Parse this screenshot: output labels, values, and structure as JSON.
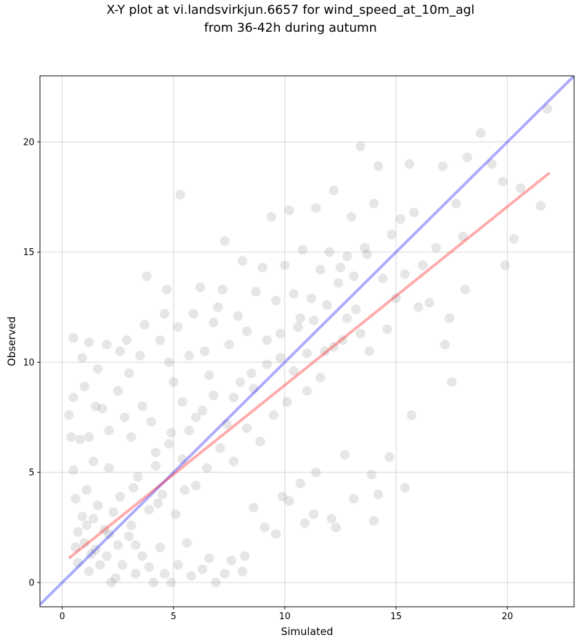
{
  "chart_data": {
    "type": "scatter",
    "title_line1": "X-Y plot at vi.landsvirkjun.6657 for wind_speed_at_10m_agl",
    "title_line2": "from 36-42h during autumn",
    "xlabel": "Simulated",
    "ylabel": "Observed",
    "xlim": [
      -1.0,
      23.0
    ],
    "ylim": [
      -1.1,
      23.0
    ],
    "xticks": [
      0,
      5,
      10,
      15,
      20
    ],
    "yticks": [
      0,
      5,
      10,
      15,
      20
    ],
    "grid": true,
    "point_color": "#808080",
    "series": [
      {
        "values": [
          [
            0.3,
            7.6
          ],
          [
            0.4,
            6.6
          ],
          [
            0.5,
            11.1
          ],
          [
            0.5,
            8.4
          ],
          [
            0.5,
            5.1
          ],
          [
            0.6,
            3.8
          ],
          [
            0.7,
            2.3
          ],
          [
            0.8,
            6.5
          ],
          [
            0.9,
            10.2
          ],
          [
            1.0,
            8.9
          ],
          [
            1.2,
            10.9
          ],
          [
            1.2,
            6.6
          ],
          [
            1.1,
            4.2
          ],
          [
            1.3,
            1.3
          ],
          [
            1.4,
            5.5
          ],
          [
            1.5,
            8.0
          ],
          [
            1.6,
            9.7
          ],
          [
            1.8,
            7.9
          ],
          [
            2.0,
            10.8
          ],
          [
            2.1,
            6.9
          ],
          [
            2.1,
            5.2
          ],
          [
            2.3,
            3.2
          ],
          [
            2.4,
            0.2
          ],
          [
            2.5,
            8.7
          ],
          [
            2.6,
            10.5
          ],
          [
            2.8,
            7.5
          ],
          [
            2.9,
            11.0
          ],
          [
            3.0,
            9.5
          ],
          [
            3.1,
            6.6
          ],
          [
            3.2,
            4.3
          ],
          [
            3.3,
            1.7
          ],
          [
            3.5,
            10.3
          ],
          [
            3.6,
            8.0
          ],
          [
            3.7,
            11.7
          ],
          [
            3.8,
            13.9
          ],
          [
            4.0,
            7.3
          ],
          [
            4.2,
            5.3
          ],
          [
            4.3,
            3.6
          ],
          [
            4.4,
            11.0
          ],
          [
            4.6,
            12.2
          ],
          [
            4.7,
            13.3
          ],
          [
            4.8,
            10.0
          ],
          [
            4.9,
            6.8
          ],
          [
            5.0,
            9.1
          ],
          [
            5.2,
            11.6
          ],
          [
            5.3,
            17.6
          ],
          [
            5.4,
            8.2
          ],
          [
            5.5,
            4.2
          ],
          [
            5.7,
            10.3
          ],
          [
            5.9,
            12.2
          ],
          [
            6.0,
            7.5
          ],
          [
            6.2,
            13.4
          ],
          [
            6.4,
            10.5
          ],
          [
            6.6,
            9.4
          ],
          [
            6.8,
            11.8
          ],
          [
            7.0,
            12.5
          ],
          [
            7.2,
            13.3
          ],
          [
            7.3,
            15.5
          ],
          [
            7.5,
            10.8
          ],
          [
            7.7,
            8.4
          ],
          [
            7.9,
            12.1
          ],
          [
            8.1,
            14.6
          ],
          [
            8.3,
            11.4
          ],
          [
            8.5,
            9.5
          ],
          [
            8.7,
            13.2
          ],
          [
            9.0,
            14.3
          ],
          [
            9.2,
            11.0
          ],
          [
            9.4,
            16.6
          ],
          [
            9.6,
            12.8
          ],
          [
            9.8,
            10.2
          ],
          [
            10.0,
            14.4
          ],
          [
            10.2,
            16.9
          ],
          [
            10.4,
            13.1
          ],
          [
            10.6,
            11.6
          ],
          [
            10.8,
            15.1
          ],
          [
            11.0,
            8.7
          ],
          [
            11.2,
            12.9
          ],
          [
            11.4,
            17.0
          ],
          [
            11.6,
            14.2
          ],
          [
            11.8,
            10.5
          ],
          [
            12.0,
            15.0
          ],
          [
            12.2,
            17.8
          ],
          [
            12.4,
            13.6
          ],
          [
            12.6,
            11.0
          ],
          [
            12.8,
            14.8
          ],
          [
            13.0,
            16.6
          ],
          [
            13.2,
            12.4
          ],
          [
            13.4,
            19.8
          ],
          [
            13.6,
            15.2
          ],
          [
            13.8,
            10.5
          ],
          [
            14.0,
            17.2
          ],
          [
            14.2,
            18.9
          ],
          [
            14.4,
            13.8
          ],
          [
            14.6,
            11.5
          ],
          [
            14.8,
            15.8
          ],
          [
            15.0,
            12.9
          ],
          [
            15.2,
            16.5
          ],
          [
            15.4,
            14.0
          ],
          [
            15.6,
            19.0
          ],
          [
            15.8,
            16.8
          ],
          [
            16.0,
            12.5
          ],
          [
            16.2,
            14.4
          ],
          [
            16.5,
            12.7
          ],
          [
            16.8,
            15.2
          ],
          [
            17.1,
            18.9
          ],
          [
            17.4,
            12.0
          ],
          [
            17.7,
            17.2
          ],
          [
            18.0,
            15.7
          ],
          [
            18.2,
            19.3
          ],
          [
            18.8,
            20.4
          ],
          [
            19.3,
            19.0
          ],
          [
            19.8,
            18.2
          ],
          [
            20.3,
            15.6
          ],
          [
            20.6,
            17.9
          ],
          [
            21.5,
            17.1
          ],
          [
            21.8,
            21.5
          ],
          [
            18.1,
            13.3
          ],
          [
            17.2,
            10.8
          ],
          [
            17.5,
            9.1
          ],
          [
            19.9,
            14.4
          ],
          [
            15.7,
            7.6
          ],
          [
            15.4,
            4.3
          ],
          [
            14.7,
            5.7
          ],
          [
            14.2,
            4.0
          ],
          [
            14.0,
            2.8
          ],
          [
            13.9,
            4.9
          ],
          [
            13.1,
            3.8
          ],
          [
            12.7,
            5.8
          ],
          [
            12.3,
            2.5
          ],
          [
            12.1,
            2.9
          ],
          [
            11.4,
            5.0
          ],
          [
            11.3,
            3.1
          ],
          [
            10.9,
            2.7
          ],
          [
            10.7,
            4.5
          ],
          [
            10.2,
            3.7
          ],
          [
            9.9,
            3.9
          ],
          [
            9.6,
            2.2
          ],
          [
            9.1,
            2.5
          ],
          [
            8.6,
            3.4
          ],
          [
            8.2,
            1.2
          ],
          [
            8.1,
            0.5
          ],
          [
            7.6,
            1.0
          ],
          [
            7.3,
            0.4
          ],
          [
            6.9,
            0.0
          ],
          [
            6.6,
            1.1
          ],
          [
            6.3,
            0.6
          ],
          [
            5.8,
            0.3
          ],
          [
            5.6,
            1.8
          ],
          [
            5.2,
            0.8
          ],
          [
            4.9,
            0.0
          ],
          [
            4.6,
            0.4
          ],
          [
            4.4,
            1.6
          ],
          [
            4.1,
            0.0
          ],
          [
            3.9,
            0.7
          ],
          [
            3.6,
            1.2
          ],
          [
            3.3,
            0.4
          ],
          [
            3.0,
            2.1
          ],
          [
            2.7,
            0.8
          ],
          [
            2.5,
            1.7
          ],
          [
            2.2,
            0.0
          ],
          [
            2.0,
            1.2
          ],
          [
            1.9,
            2.4
          ],
          [
            1.7,
            0.8
          ],
          [
            1.5,
            1.5
          ],
          [
            1.4,
            2.9
          ],
          [
            1.2,
            0.5
          ],
          [
            1.0,
            1.8
          ],
          [
            0.9,
            3.0
          ],
          [
            0.7,
            0.9
          ],
          [
            0.6,
            1.6
          ],
          [
            1.1,
            2.6
          ],
          [
            1.6,
            3.5
          ],
          [
            2.1,
            2.2
          ],
          [
            2.6,
            3.9
          ],
          [
            3.1,
            2.6
          ],
          [
            3.4,
            4.8
          ],
          [
            3.9,
            3.3
          ],
          [
            4.2,
            5.9
          ],
          [
            4.5,
            4.0
          ],
          [
            4.8,
            6.3
          ],
          [
            5.1,
            3.1
          ],
          [
            5.4,
            5.6
          ],
          [
            5.7,
            6.9
          ],
          [
            6.0,
            4.4
          ],
          [
            6.3,
            7.8
          ],
          [
            6.5,
            5.2
          ],
          [
            6.8,
            8.5
          ],
          [
            7.1,
            6.1
          ],
          [
            7.4,
            7.2
          ],
          [
            7.7,
            5.5
          ],
          [
            8.0,
            9.1
          ],
          [
            8.3,
            7.0
          ],
          [
            8.6,
            8.8
          ],
          [
            8.9,
            6.4
          ],
          [
            9.2,
            9.9
          ],
          [
            9.5,
            7.6
          ],
          [
            9.8,
            11.3
          ],
          [
            10.1,
            8.2
          ],
          [
            10.4,
            9.6
          ],
          [
            10.7,
            12.0
          ],
          [
            11.0,
            10.4
          ],
          [
            11.3,
            11.9
          ],
          [
            11.6,
            9.3
          ],
          [
            11.9,
            12.6
          ],
          [
            12.2,
            10.7
          ],
          [
            12.5,
            14.3
          ],
          [
            12.8,
            12.0
          ],
          [
            13.1,
            13.9
          ],
          [
            13.4,
            11.3
          ],
          [
            13.7,
            14.9
          ]
        ]
      }
    ],
    "reference_line": {
      "name": "1:1",
      "color": "#0000ff",
      "x": [
        -1.0,
        23.0
      ],
      "y": [
        -1.0,
        23.0
      ]
    },
    "fit_line": {
      "name": "fit",
      "color": "#ff0000",
      "x": [
        0.3,
        21.9
      ],
      "y": [
        1.1,
        18.6
      ]
    }
  }
}
